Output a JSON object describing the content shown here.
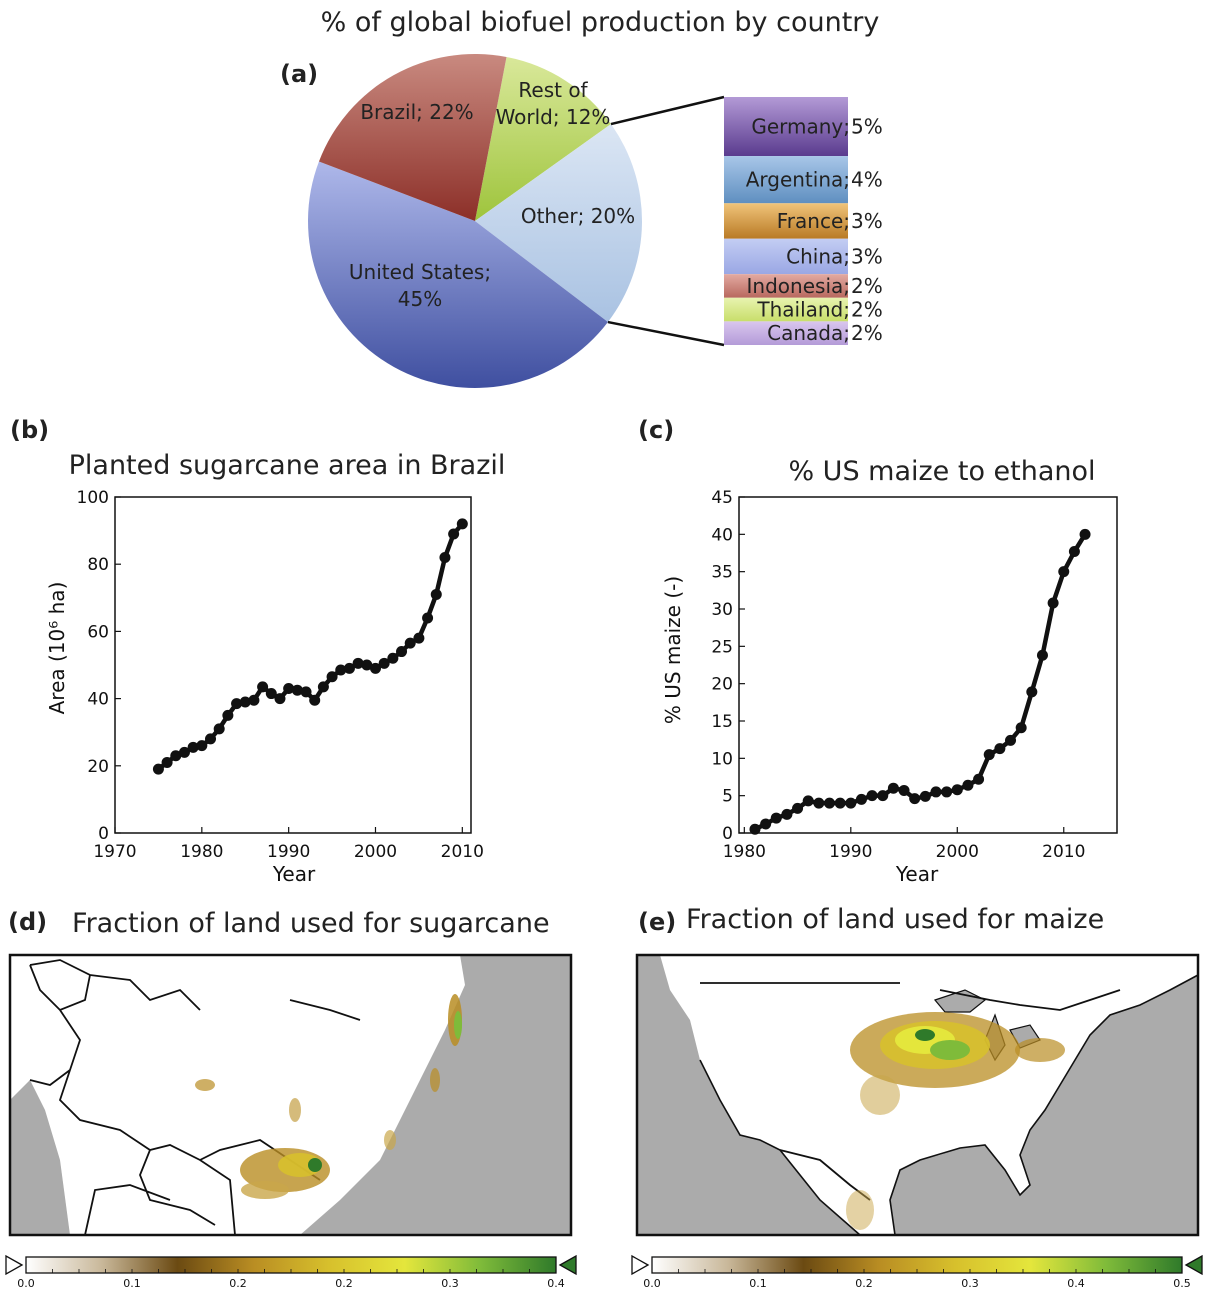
{
  "pie": {
    "title": "% of global biofuel production by country",
    "panel_label": "(a)",
    "slices": [
      {
        "label_lines": [
          "Rest of",
          "World; 12%"
        ],
        "value": 12,
        "color_light": "#d9e89a",
        "color_dark": "#9ec43c"
      },
      {
        "label_lines": [
          "Other; 20%"
        ],
        "value": 20,
        "color_light": "#dbe6f4",
        "color_dark": "#a9c2e2"
      },
      {
        "label_lines": [
          "United States;",
          "45%"
        ],
        "value": 45,
        "color_light": "#aeb8ea",
        "color_dark": "#3f4fa0"
      },
      {
        "label_lines": [
          "Brazil; 22%"
        ],
        "value": 22,
        "color_light": "#c98a80",
        "color_dark": "#8c2f28"
      }
    ],
    "breakdown": [
      {
        "label": "Germany; 5%",
        "value": 5,
        "color_light": "#b39ad6",
        "color_dark": "#5a3b8e"
      },
      {
        "label": "Argentina; 4%",
        "value": 4,
        "color_light": "#a8c6e8",
        "color_dark": "#5f8fc0"
      },
      {
        "label": "France; 3%",
        "value": 3,
        "color_light": "#f0c47a",
        "color_dark": "#b97a25"
      },
      {
        "label": "China; 3%",
        "value": 3,
        "color_light": "#c3cdf3",
        "color_dark": "#9aa7e4"
      },
      {
        "label": "Indonesia; 2%",
        "value": 2,
        "color_light": "#e3aaa2",
        "color_dark": "#b8685e"
      },
      {
        "label": "Thailand; 2%",
        "value": 2,
        "color_light": "#e8f3b0",
        "color_dark": "#c8de6a"
      },
      {
        "label": "Canada; 2%",
        "value": 2,
        "color_light": "#d9c6ee",
        "color_dark": "#b49bd8"
      }
    ]
  },
  "chart_data": [
    {
      "type": "pie",
      "title": "% of global biofuel production by country",
      "categories": [
        "United States",
        "Brazil",
        "Rest of World",
        "Other"
      ],
      "values": [
        45,
        22,
        12,
        20
      ],
      "other_breakdown": {
        "categories": [
          "Germany",
          "Argentina",
          "France",
          "China",
          "Indonesia",
          "Thailand",
          "Canada"
        ],
        "values": [
          5,
          4,
          3,
          3,
          2,
          2,
          2
        ]
      }
    },
    {
      "type": "line",
      "panel_label": "(b)",
      "title": "Planted sugarcane area in Brazil",
      "xlabel": "Year",
      "ylabel": "Area (10⁶ ha)",
      "xlim": [
        1970,
        2011
      ],
      "ylim": [
        0,
        100
      ],
      "xticks": [
        1970,
        1980,
        1990,
        2000,
        2010
      ],
      "yticks": [
        0,
        20,
        40,
        60,
        80,
        100
      ],
      "x": [
        1975,
        1976,
        1977,
        1978,
        1979,
        1980,
        1981,
        1982,
        1983,
        1984,
        1985,
        1986,
        1987,
        1988,
        1989,
        1990,
        1991,
        1992,
        1993,
        1994,
        1995,
        1996,
        1997,
        1998,
        1999,
        2000,
        2001,
        2002,
        2003,
        2004,
        2005,
        2006,
        2007,
        2008,
        2009,
        2010
      ],
      "y": [
        19,
        21,
        23,
        24,
        25.5,
        26,
        28,
        31,
        35,
        38.5,
        39,
        39.5,
        43.5,
        41.5,
        40,
        43,
        42.5,
        42,
        39.5,
        43.5,
        46.5,
        48.5,
        49,
        50.5,
        50,
        49,
        50.5,
        52,
        54,
        56.5,
        58,
        64,
        71,
        82,
        89,
        92
      ]
    },
    {
      "type": "line",
      "panel_label": "(c)",
      "title": "% US maize to ethanol",
      "xlabel": "Year",
      "ylabel": "% US maize (-)",
      "xlim": [
        1979.5,
        2015
      ],
      "ylim": [
        0,
        45
      ],
      "xticks": [
        1980,
        1990,
        2000,
        2010
      ],
      "yticks": [
        0,
        5,
        10,
        15,
        20,
        25,
        30,
        35,
        40,
        45
      ],
      "x": [
        1981,
        1982,
        1983,
        1984,
        1985,
        1986,
        1987,
        1988,
        1989,
        1990,
        1991,
        1992,
        1993,
        1994,
        1995,
        1996,
        1997,
        1998,
        1999,
        2000,
        2001,
        2002,
        2003,
        2004,
        2005,
        2006,
        2007,
        2008,
        2009,
        2010,
        2011,
        2012
      ],
      "y": [
        0.5,
        1.2,
        2,
        2.5,
        3.3,
        4.3,
        4,
        4,
        4,
        4,
        4.5,
        5,
        5,
        6,
        5.7,
        4.6,
        4.9,
        5.5,
        5.5,
        5.8,
        6.4,
        7.2,
        10.5,
        11.3,
        12.4,
        14.1,
        18.9,
        23.8,
        30.8,
        35,
        37.7,
        40
      ]
    },
    {
      "type": "heatmap",
      "panel_label": "(d)",
      "title": "Fraction of land used for sugarcane",
      "colorbar": {
        "ticks": [
          "0.0",
          "0.1",
          "0.2",
          "0.2",
          "0.3",
          "0.4"
        ],
        "min": 0,
        "max": 0.4
      }
    },
    {
      "type": "heatmap",
      "panel_label": "(e)",
      "title": "Fraction of land used for maize",
      "colorbar": {
        "ticks": [
          "0.0",
          "0.1",
          "0.2",
          "0.3",
          "0.4",
          "0.5"
        ],
        "min": 0,
        "max": 0.5
      }
    }
  ],
  "colors": {
    "land": "#ffffff",
    "ocean": "#ababab",
    "ramp": [
      "#ffffff",
      "#c9b89a",
      "#6b4a12",
      "#b98d23",
      "#d7c02c",
      "#e4e63c",
      "#7fbb3a",
      "#2f7a2a"
    ]
  }
}
